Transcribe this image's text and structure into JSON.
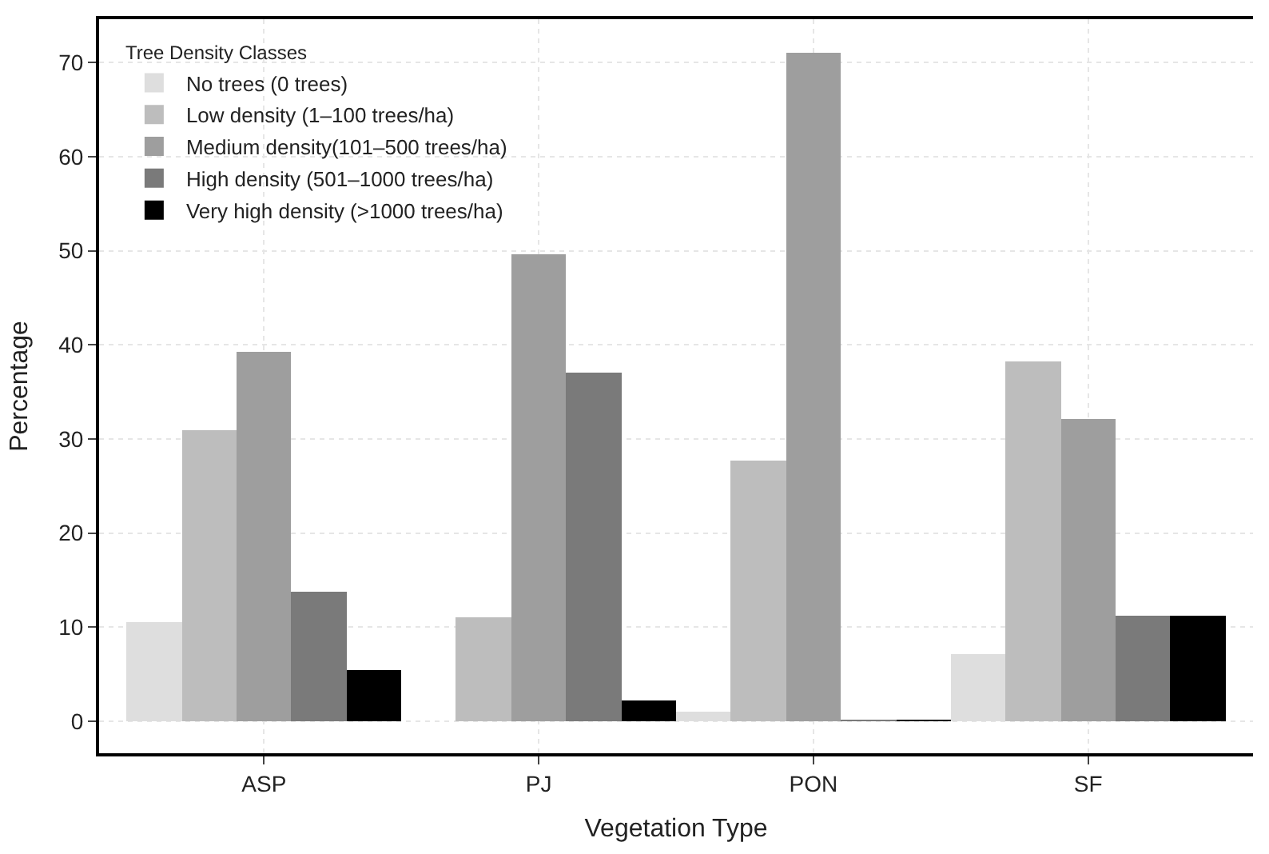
{
  "chart_data": {
    "type": "bar",
    "xlabel": "Vegetation Type",
    "ylabel": "Percentage",
    "legend_title": "Tree Density Classes",
    "categories": [
      "ASP",
      "PJ",
      "PON",
      "SF"
    ],
    "series": [
      {
        "name": "No trees (0 trees)",
        "color": "#dedede",
        "values": [
          10.6,
          0,
          1.0,
          7.2
        ]
      },
      {
        "name": "Low density (1–100 trees/ha)",
        "color": "#bdbdbd",
        "values": [
          31.0,
          11.0,
          27.7,
          38.3
        ]
      },
      {
        "name": "Medium density(101–500 trees/ha)",
        "color": "#9e9e9e",
        "values": [
          39.2,
          49.6,
          71.0,
          32.2
        ]
      },
      {
        "name": "High density (501–1000 trees/ha)",
        "color": "#7a7a7a",
        "values": [
          13.8,
          37.0,
          0.1,
          11.2
        ]
      },
      {
        "name": "Very high density (>1000 trees/ha)",
        "color": "#000000",
        "values": [
          5.4,
          2.2,
          0.1,
          11.2
        ]
      }
    ],
    "ylim": [
      -3.4,
      74.6
    ],
    "yticks": [
      0,
      10,
      20,
      30,
      40,
      50,
      60,
      70
    ],
    "grid": true,
    "legend": "top left"
  }
}
